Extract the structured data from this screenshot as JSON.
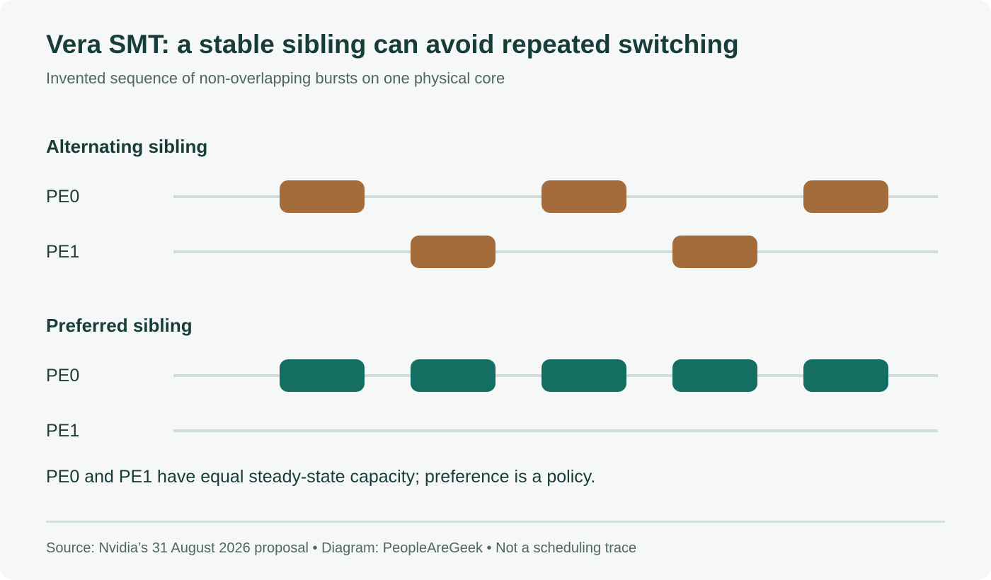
{
  "title": "Vera SMT: a stable sibling can avoid repeated switching",
  "subtitle": "Invented sequence of non-overlapping bursts on one physical core",
  "colors": {
    "alternating": "#a46c3b",
    "preferred": "#146e62",
    "track": "#cfdedb"
  },
  "sections": [
    {
      "heading": "Alternating sibling",
      "color": "#a46c3b",
      "rows": [
        {
          "label": "PE0",
          "bursts": [
            1,
            3,
            5
          ]
        },
        {
          "label": "PE1",
          "bursts": [
            2,
            4
          ]
        }
      ]
    },
    {
      "heading": "Preferred sibling",
      "color": "#146e62",
      "rows": [
        {
          "label": "PE0",
          "bursts": [
            1,
            2,
            3,
            4,
            5
          ]
        },
        {
          "label": "PE1",
          "bursts": []
        }
      ]
    }
  ],
  "note": "PE0 and PE1 have equal steady-state capacity; preference is a policy.",
  "footer": "Source: Nvidia’s 31 August 2026 proposal • Diagram: PeopleAreGeek • Not a scheduling trace"
}
